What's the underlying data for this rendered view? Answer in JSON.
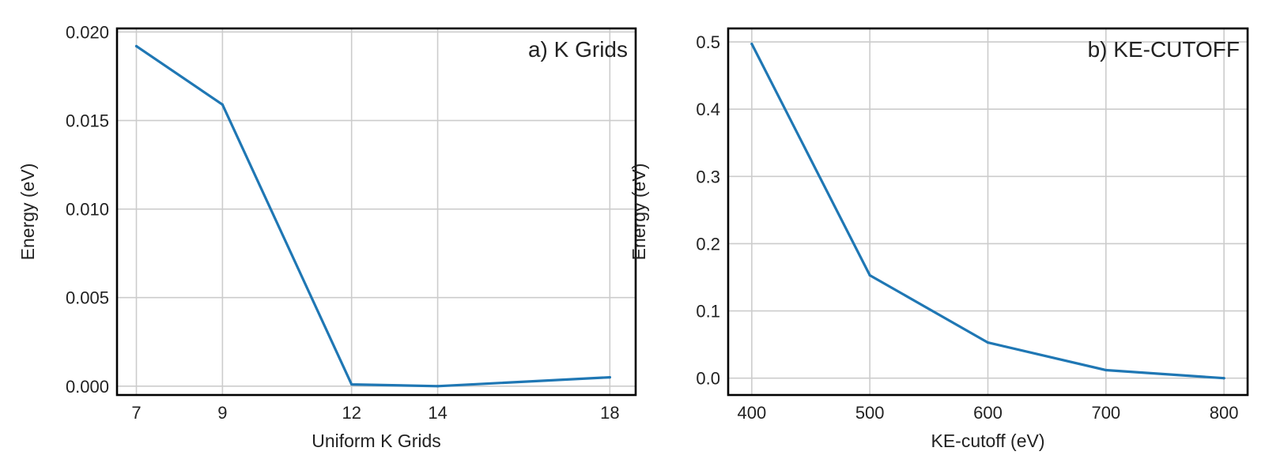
{
  "chart_data": [
    {
      "type": "line",
      "title": "a) K Grids",
      "xlabel": "Uniform K Grids",
      "ylabel": "Energy (eV)",
      "x": [
        7,
        9,
        12,
        14,
        18
      ],
      "series": [
        {
          "values": [
            0.0192,
            0.0159,
            0.0001,
            0.0,
            0.0005
          ]
        }
      ],
      "xlim": [
        6.55,
        18.6
      ],
      "ylim": [
        -0.0005,
        0.0202
      ],
      "xticks": [
        7,
        9,
        12,
        14,
        18
      ],
      "xtick_labels": [
        "7",
        "9",
        "12",
        "14",
        "18"
      ],
      "yticks": [
        0.0,
        0.005,
        0.01,
        0.015,
        0.02
      ],
      "ytick_labels": [
        "0.000",
        "0.005",
        "0.010",
        "0.015",
        "0.020"
      ],
      "grid": true,
      "line_color": "#1f77b4"
    },
    {
      "type": "line",
      "title": "b) KE-CUTOFF",
      "xlabel": "KE-cutoff (eV)",
      "ylabel": "Energy (eV)",
      "x": [
        400,
        500,
        600,
        700,
        800
      ],
      "series": [
        {
          "values": [
            0.497,
            0.153,
            0.053,
            0.012,
            0.0
          ]
        }
      ],
      "xlim": [
        380,
        820
      ],
      "ylim": [
        -0.025,
        0.52
      ],
      "xticks": [
        400,
        500,
        600,
        700,
        800
      ],
      "xtick_labels": [
        "400",
        "500",
        "600",
        "700",
        "800"
      ],
      "yticks": [
        0.0,
        0.1,
        0.2,
        0.3,
        0.4,
        0.5
      ],
      "ytick_labels": [
        "0.0",
        "0.1",
        "0.2",
        "0.3",
        "0.4",
        "0.5"
      ],
      "grid": true,
      "line_color": "#1f77b4"
    }
  ]
}
